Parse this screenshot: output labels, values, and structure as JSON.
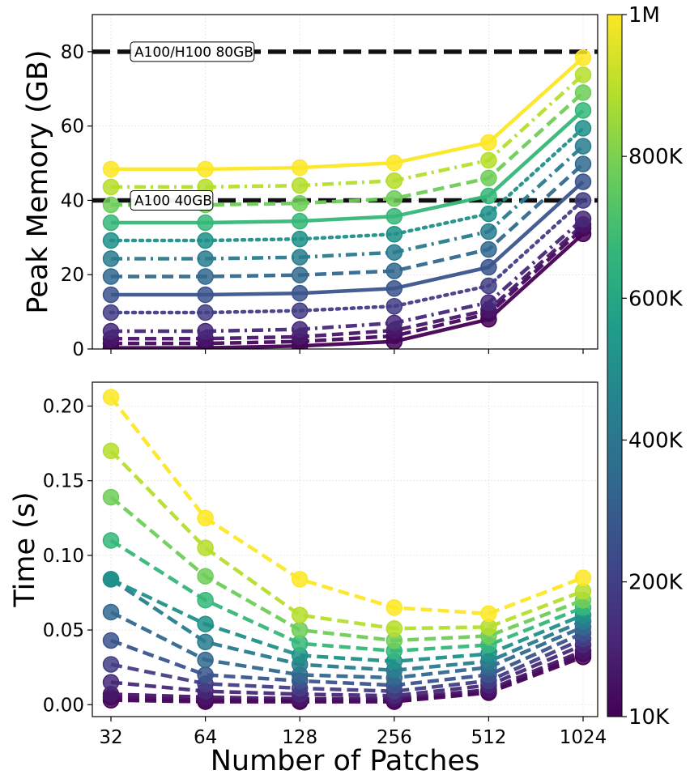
{
  "colorbar": {
    "stops": [
      "#440154",
      "#482878",
      "#3e4989",
      "#31688e",
      "#26828e",
      "#1f9e89",
      "#35b779",
      "#6ece58",
      "#b5de2b",
      "#fde725"
    ],
    "tick_labels": [
      "10K",
      "200K",
      "400K",
      "600K",
      "800K",
      "1M"
    ],
    "tick_values": [
      10000,
      200000,
      400000,
      600000,
      800000,
      1000000
    ],
    "range": [
      10000,
      1000000
    ]
  },
  "chart_data": [
    {
      "type": "line",
      "ylabel": "Peak Memory (GB)",
      "xlabel": "",
      "x": [
        32,
        64,
        128,
        256,
        512,
        1024
      ],
      "x_scale": "log2",
      "x_tick_labels": [
        "32",
        "64",
        "128",
        "256",
        "512",
        "1024"
      ],
      "ylim": [
        0,
        90
      ],
      "y_ticks": [
        0,
        20,
        40,
        60,
        80
      ],
      "y_tick_labels": [
        "0",
        "20",
        "40",
        "60",
        "80"
      ],
      "grid": true,
      "reference_lines": [
        {
          "y": 80,
          "label": "A100/H100 80GB"
        },
        {
          "y": 40,
          "label": "A100 40GB"
        }
      ],
      "series": [
        {
          "size": 10000,
          "color": "#440154",
          "style": "solid",
          "values": [
            0.3,
            0.3,
            0.8,
            2.0,
            8.0,
            31.0
          ]
        },
        {
          "size": 50000,
          "color": "#46085c",
          "style": "dashed",
          "values": [
            1.5,
            1.5,
            2.0,
            3.5,
            9.5,
            32.5
          ]
        },
        {
          "size": 100000,
          "color": "#481668",
          "style": "dashed",
          "values": [
            2.8,
            2.8,
            3.3,
            5.0,
            10.5,
            33.5
          ]
        },
        {
          "size": 150000,
          "color": "#472878",
          "style": "dashdot",
          "values": [
            4.8,
            4.8,
            5.3,
            7.0,
            12.5,
            35.0
          ]
        },
        {
          "size": 200000,
          "color": "#433e85",
          "style": "dotted",
          "values": [
            9.8,
            9.8,
            10.3,
            11.5,
            17.0,
            40.0
          ]
        },
        {
          "size": 300000,
          "color": "#3a548c",
          "style": "solid",
          "values": [
            14.6,
            14.6,
            15.0,
            16.3,
            22.0,
            45.0
          ]
        },
        {
          "size": 400000,
          "color": "#31688e",
          "style": "dashed",
          "values": [
            19.5,
            19.5,
            19.9,
            21.0,
            26.8,
            49.8
          ]
        },
        {
          "size": 500000,
          "color": "#287c8e",
          "style": "dashdot",
          "values": [
            24.3,
            24.3,
            24.7,
            26.0,
            31.6,
            54.6
          ]
        },
        {
          "size": 600000,
          "color": "#1f9088",
          "style": "dotted",
          "values": [
            29.2,
            29.2,
            29.6,
            30.9,
            36.4,
            59.4
          ]
        },
        {
          "size": 700000,
          "color": "#35b779",
          "style": "solid",
          "values": [
            34.0,
            34.0,
            34.4,
            35.7,
            41.2,
            64.2
          ]
        },
        {
          "size": 800000,
          "color": "#6ece58",
          "style": "dashed",
          "values": [
            38.8,
            38.8,
            39.2,
            40.5,
            46.0,
            69.0
          ]
        },
        {
          "size": 900000,
          "color": "#b5de2b",
          "style": "dashdot",
          "values": [
            43.6,
            43.6,
            44.0,
            45.3,
            50.8,
            73.8
          ]
        },
        {
          "size": 1000000,
          "color": "#fde725",
          "style": "solid",
          "values": [
            48.4,
            48.4,
            48.8,
            50.1,
            55.6,
            78.4
          ]
        }
      ]
    },
    {
      "type": "line",
      "ylabel": "Time (s)",
      "xlabel": "Number of Patches",
      "x": [
        32,
        64,
        128,
        256,
        512,
        1024
      ],
      "x_scale": "log2",
      "x_tick_labels": [
        "32",
        "64",
        "128",
        "256",
        "512",
        "1024"
      ],
      "ylim": [
        -0.008,
        0.216
      ],
      "y_ticks": [
        0.0,
        0.05,
        0.1,
        0.15,
        0.2
      ],
      "y_tick_labels": [
        "0.00",
        "0.05",
        "0.10",
        "0.15",
        "0.20"
      ],
      "grid": true,
      "series": [
        {
          "size": 10000,
          "color": "#440154",
          "style": "dashed",
          "values": [
            0.003,
            0.002,
            0.002,
            0.002,
            0.008,
            0.032
          ]
        },
        {
          "size": 50000,
          "color": "#46085c",
          "style": "dashed",
          "values": [
            0.005,
            0.003,
            0.003,
            0.003,
            0.009,
            0.034
          ]
        },
        {
          "size": 100000,
          "color": "#481668",
          "style": "dashed",
          "values": [
            0.007,
            0.005,
            0.004,
            0.004,
            0.01,
            0.036
          ]
        },
        {
          "size": 150000,
          "color": "#472878",
          "style": "dashed",
          "values": [
            0.015,
            0.009,
            0.007,
            0.006,
            0.013,
            0.04
          ]
        },
        {
          "size": 200000,
          "color": "#433e85",
          "style": "dashed",
          "values": [
            0.027,
            0.014,
            0.011,
            0.009,
            0.016,
            0.044
          ]
        },
        {
          "size": 300000,
          "color": "#3a548c",
          "style": "dashed",
          "values": [
            0.043,
            0.02,
            0.016,
            0.013,
            0.02,
            0.048
          ]
        },
        {
          "size": 400000,
          "color": "#31688e",
          "style": "dashed",
          "values": [
            0.062,
            0.03,
            0.02,
            0.018,
            0.025,
            0.052
          ]
        },
        {
          "size": 500000,
          "color": "#287c8e",
          "style": "dashed",
          "values": [
            0.084,
            0.042,
            0.027,
            0.023,
            0.029,
            0.056
          ]
        },
        {
          "size": 600000,
          "color": "#1f9088",
          "style": "dashed",
          "values": [
            0.084,
            0.054,
            0.033,
            0.029,
            0.034,
            0.06
          ]
        },
        {
          "size": 700000,
          "color": "#35b779",
          "style": "dashed",
          "values": [
            0.11,
            0.07,
            0.041,
            0.036,
            0.04,
            0.065
          ]
        },
        {
          "size": 800000,
          "color": "#6ece58",
          "style": "dashed",
          "values": [
            0.139,
            0.086,
            0.05,
            0.043,
            0.046,
            0.07
          ]
        },
        {
          "size": 900000,
          "color": "#b5de2b",
          "style": "dashed",
          "values": [
            0.17,
            0.105,
            0.06,
            0.051,
            0.052,
            0.076
          ]
        },
        {
          "size": 1000000,
          "color": "#fde725",
          "style": "dashed",
          "values": [
            0.206,
            0.125,
            0.084,
            0.065,
            0.061,
            0.085
          ]
        }
      ]
    }
  ]
}
